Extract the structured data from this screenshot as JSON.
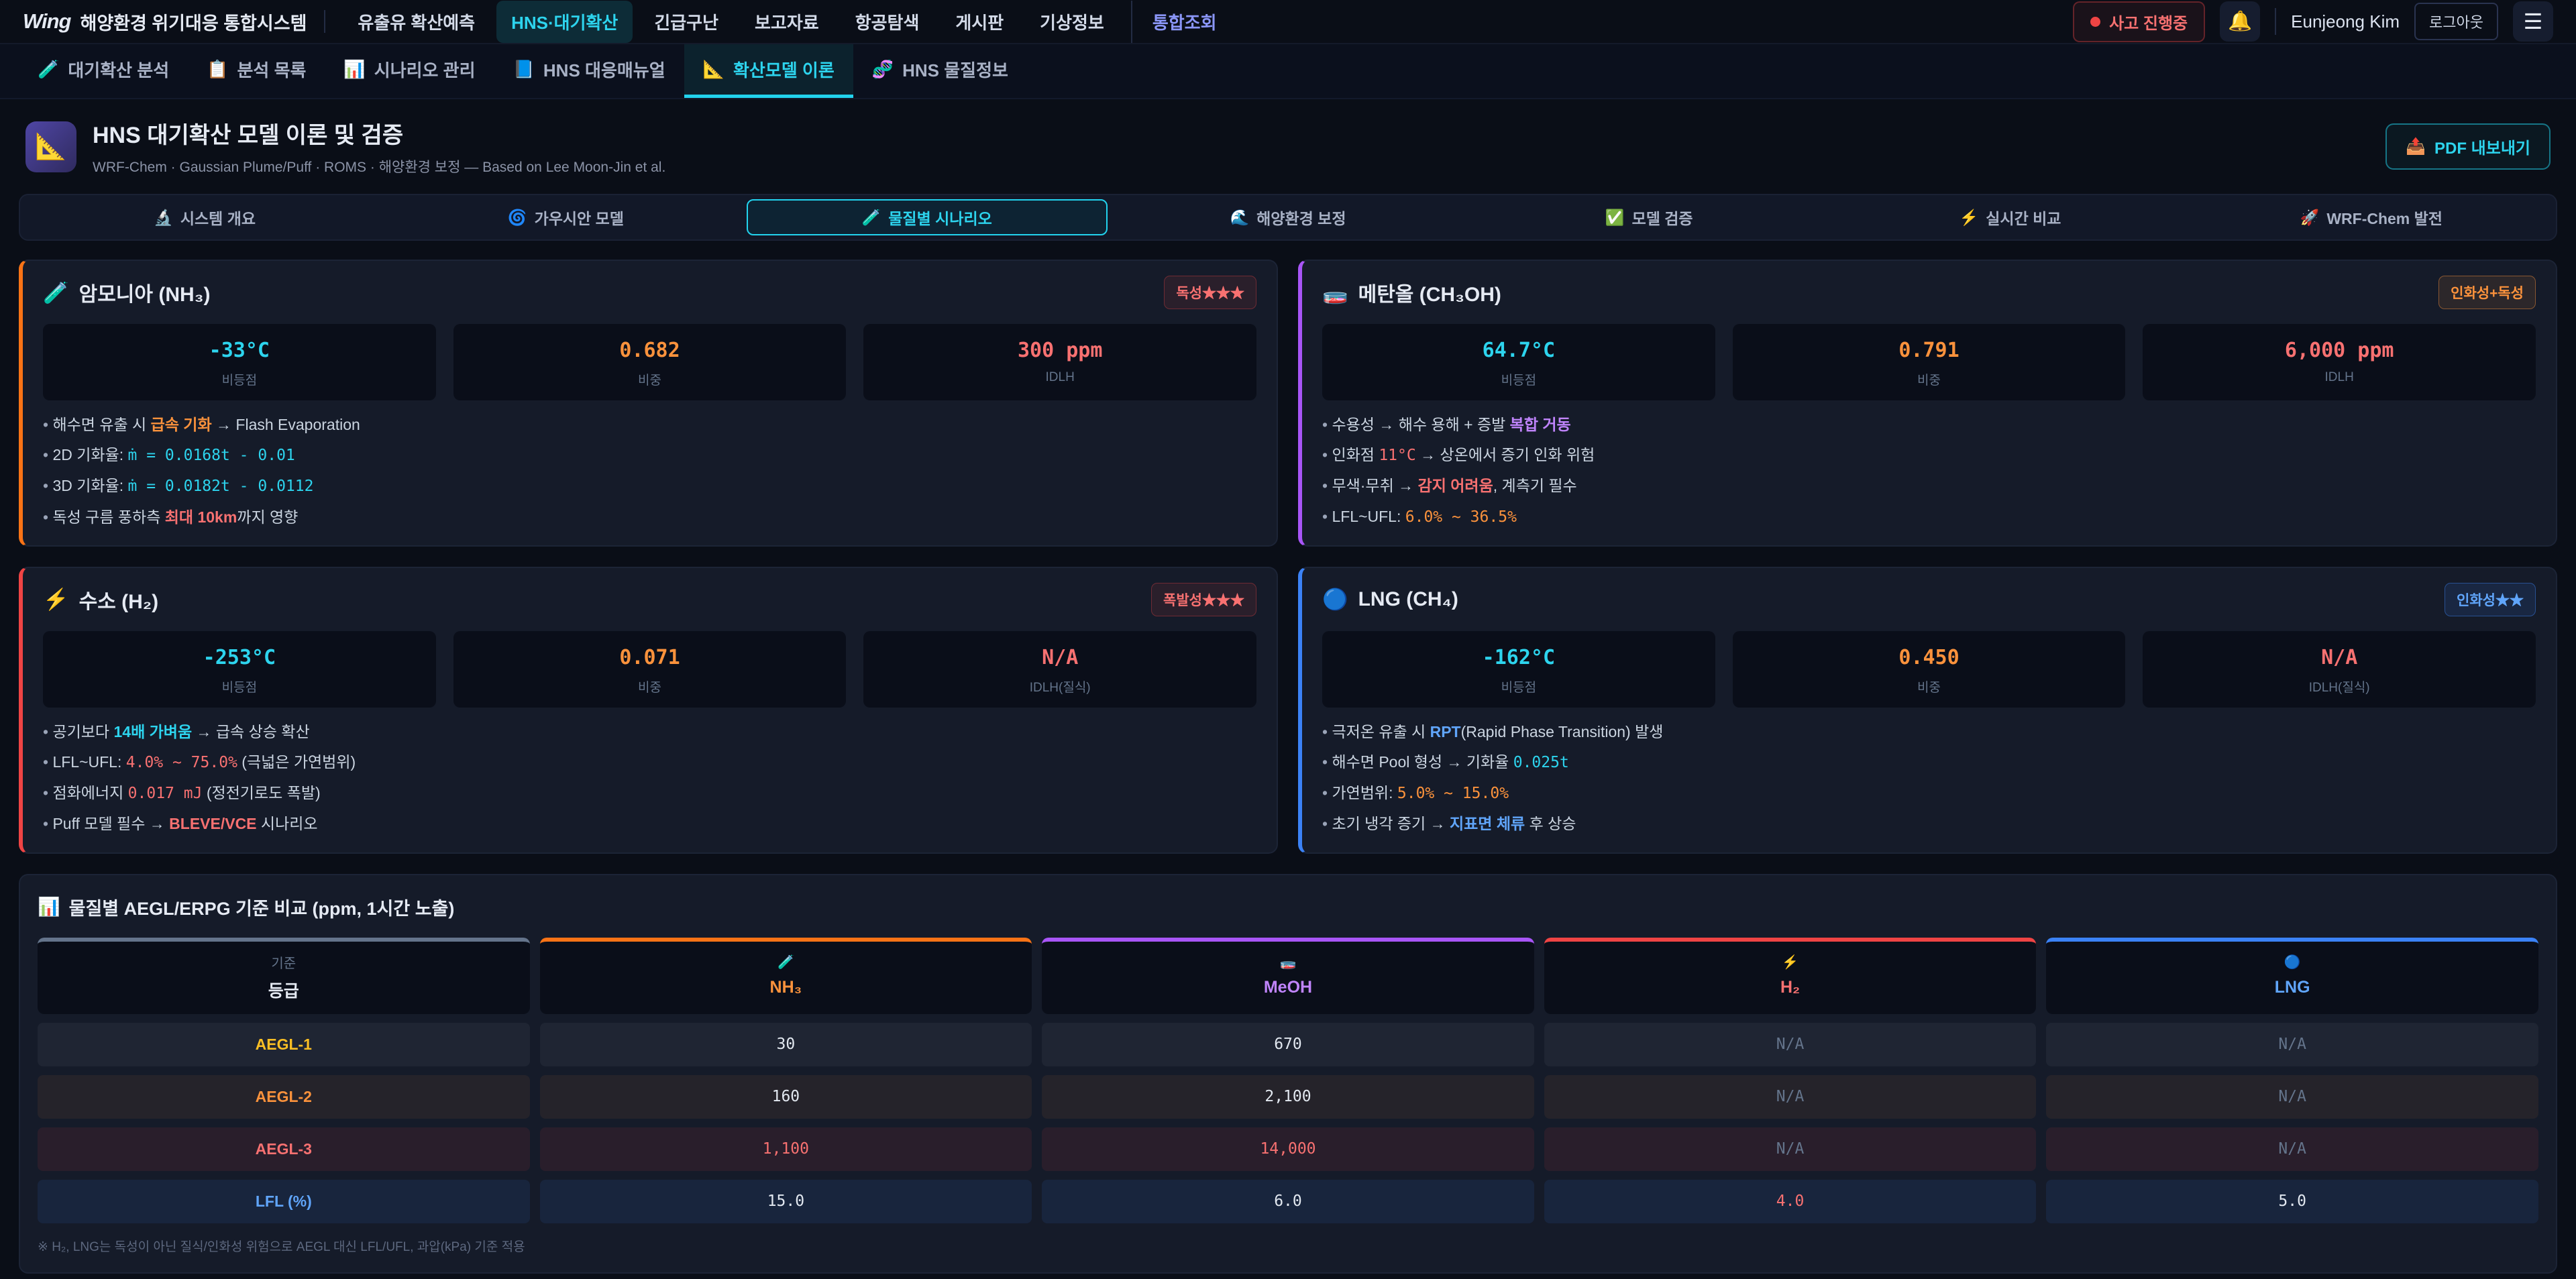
{
  "topbar": {
    "logo_mark": "Wing",
    "logo_text": "해양환경 위기대응 통합시스템",
    "nav": [
      {
        "label": "유출유 확산예측"
      },
      {
        "label": "HNS·대기확산",
        "state": "active"
      },
      {
        "label": "긴급구난"
      },
      {
        "label": "보고자료"
      },
      {
        "label": "항공탐색"
      },
      {
        "label": "게시판"
      },
      {
        "label": "기상정보"
      },
      {
        "label": "통합조회",
        "state": "accent"
      }
    ],
    "incident_label": "사고 진행중",
    "bell_icon": "🔔",
    "user_name": "Eunjeong Kim",
    "logout_label": "로그아웃",
    "menu_icon": "☰"
  },
  "subnav": [
    {
      "icon": "🧪",
      "label": "대기확산 분석"
    },
    {
      "icon": "📋",
      "label": "분석 목록"
    },
    {
      "icon": "📊",
      "label": "시나리오 관리"
    },
    {
      "icon": "📘",
      "label": "HNS 대응매뉴얼"
    },
    {
      "icon": "📐",
      "label": "확산모델 이론",
      "active": true
    },
    {
      "icon": "🧬",
      "label": "HNS 물질정보"
    }
  ],
  "header": {
    "icon": "📐",
    "title": "HNS 대기확산 모델 이론 및 검증",
    "subtitle": "WRF-Chem · Gaussian Plume/Puff · ROMS · 해양환경 보정 — Based on Lee Moon-Jin et al.",
    "export_icon": "📤",
    "export_label": "PDF 내보내기"
  },
  "section_tabs": [
    {
      "icon": "🔬",
      "label": "시스템 개요"
    },
    {
      "icon": "🌀",
      "label": "가우시안 모델"
    },
    {
      "icon": "🧪",
      "label": "물질별 시나리오",
      "active": true
    },
    {
      "icon": "🌊",
      "label": "해양환경 보정"
    },
    {
      "icon": "✅",
      "label": "모델 검증"
    },
    {
      "icon": "⚡",
      "label": "실시간 비교"
    },
    {
      "icon": "🚀",
      "label": "WRF-Chem 발전"
    }
  ],
  "cards": [
    {
      "id": "nh3",
      "accent": "#f97316",
      "icon": "🧪",
      "title": "암모니아 (NH₃)",
      "badge": {
        "label": "독성★★★",
        "style": "red"
      },
      "stats": [
        {
          "value": "-33°C",
          "label": "비등점",
          "color": "cyan"
        },
        {
          "value": "0.682",
          "label": "비중",
          "color": "orange"
        },
        {
          "value": "300 ppm",
          "label": "IDLH",
          "color": "red"
        }
      ],
      "bullets": [
        {
          "pre": "해수면 유출 시 ",
          "hl": "급속 기화",
          "style": "orange-b",
          "post": " → Flash Evaporation"
        },
        {
          "pre": "2D 기화율: ",
          "hl": "ṁ = 0.0168t - 0.01",
          "style": "cyan-m",
          "post": ""
        },
        {
          "pre": "3D 기화율: ",
          "hl": "ṁ = 0.0182t - 0.0112",
          "style": "cyan-m",
          "post": ""
        },
        {
          "pre": "독성 구름 풍하측 ",
          "hl": "최대 10km",
          "style": "red-b",
          "post": "까지 영향"
        }
      ]
    },
    {
      "id": "meoh",
      "accent": "#a855f7",
      "icon": "🧫",
      "title": "메탄올 (CH₃OH)",
      "badge": {
        "label": "인화성+독성",
        "style": "orange"
      },
      "stats": [
        {
          "value": "64.7°C",
          "label": "비등점",
          "color": "cyan"
        },
        {
          "value": "0.791",
          "label": "비중",
          "color": "orange"
        },
        {
          "value": "6,000 ppm",
          "label": "IDLH",
          "color": "red"
        }
      ],
      "bullets": [
        {
          "pre": "수용성 → 해수 용해 + 증발 ",
          "hl": "복합 거동",
          "style": "purple-b",
          "post": ""
        },
        {
          "pre": "인화점 ",
          "hl": "11°C",
          "style": "red-m",
          "post": " → 상온에서 증기 인화 위험"
        },
        {
          "pre": "무색·무취 → ",
          "hl": "감지 어려움",
          "style": "red-b",
          "post": ", 계측기 필수"
        },
        {
          "pre": "LFL~UFL: ",
          "hl": "6.0% ~ 36.5%",
          "style": "orange-m",
          "post": ""
        }
      ]
    },
    {
      "id": "h2",
      "accent": "#ef4444",
      "icon": "⚡",
      "title": "수소 (H₂)",
      "badge": {
        "label": "폭발성★★★",
        "style": "red"
      },
      "stats": [
        {
          "value": "-253°C",
          "label": "비등점",
          "color": "cyan"
        },
        {
          "value": "0.071",
          "label": "비중",
          "color": "orange"
        },
        {
          "value": "N/A",
          "label": "IDLH(질식)",
          "color": "red"
        }
      ],
      "bullets": [
        {
          "pre": "공기보다 ",
          "hl": "14배 가벼움",
          "style": "cyan-b",
          "post": " → 급속 상승 확산"
        },
        {
          "pre": "LFL~UFL: ",
          "hl": "4.0% ~ 75.0%",
          "style": "red-m",
          "post": " (극넓은 가연범위)"
        },
        {
          "pre": "점화에너지 ",
          "hl": "0.017 mJ",
          "style": "red-m",
          "post": " (정전기로도 폭발)"
        },
        {
          "pre": "Puff 모델 필수 → ",
          "hl": "BLEVE/VCE",
          "style": "red-b",
          "post": " 시나리오"
        }
      ]
    },
    {
      "id": "lng",
      "accent": "#3b82f6",
      "icon": "🔵",
      "title": "LNG (CH₄)",
      "badge": {
        "label": "인화성★★",
        "style": "blue"
      },
      "stats": [
        {
          "value": "-162°C",
          "label": "비등점",
          "color": "cyan"
        },
        {
          "value": "0.450",
          "label": "비중",
          "color": "orange"
        },
        {
          "value": "N/A",
          "label": "IDLH(질식)",
          "color": "red"
        }
      ],
      "bullets": [
        {
          "pre": "극저온 유출 시 ",
          "hl": "RPT",
          "style": "blue-b",
          "post": "(Rapid Phase Transition) 발생"
        },
        {
          "pre": "해수면 Pool 형성 → 기화율 ",
          "hl": "0.025t",
          "style": "cyan-m",
          "post": ""
        },
        {
          "pre": "가연범위: ",
          "hl": "5.0% ~ 15.0%",
          "style": "orange-m",
          "post": ""
        },
        {
          "pre": "초기 냉각 증기 → ",
          "hl": "지표면 체류",
          "style": "blue-b",
          "post": " 후 상승"
        }
      ]
    }
  ],
  "table": {
    "icon": "📊",
    "title": "물질별 AEGL/ERPG 기준 비교 (ppm, 1시간 노출)",
    "columns": [
      {
        "top": "기준",
        "label": "등급",
        "accent": "#64748b",
        "label_color": "#e5eaf3"
      },
      {
        "top": "🧪",
        "label": "NH₃",
        "accent": "#f97316",
        "label_color": "#fb923c"
      },
      {
        "top": "🧫",
        "label": "MeOH",
        "accent": "#a855f7",
        "label_color": "#c084fc"
      },
      {
        "top": "⚡",
        "label": "H₂",
        "accent": "#ef4444",
        "label_color": "#f87171"
      },
      {
        "top": "🔵",
        "label": "LNG",
        "accent": "#3b82f6",
        "label_color": "#60a5fa"
      }
    ],
    "rows": [
      {
        "label": "AEGL-1",
        "label_color": "#fbbf24",
        "tint": "rgba(148,163,184,0.08)",
        "values": [
          {
            "t": "30"
          },
          {
            "t": "670"
          },
          {
            "t": "N/A",
            "c": "muted"
          },
          {
            "t": "N/A",
            "c": "muted"
          }
        ]
      },
      {
        "label": "AEGL-2",
        "label_color": "#fb923c",
        "tint": "rgba(251,146,60,0.07)",
        "values": [
          {
            "t": "160"
          },
          {
            "t": "2,100"
          },
          {
            "t": "N/A",
            "c": "muted"
          },
          {
            "t": "N/A",
            "c": "muted"
          }
        ]
      },
      {
        "label": "AEGL-3",
        "label_color": "#f87171",
        "tint": "rgba(239,68,68,0.09)",
        "values": [
          {
            "t": "1,100",
            "c": "red"
          },
          {
            "t": "14,000",
            "c": "red"
          },
          {
            "t": "N/A",
            "c": "muted"
          },
          {
            "t": "N/A",
            "c": "muted"
          }
        ]
      },
      {
        "label": "LFL (%)",
        "label_color": "#60a5fa",
        "tint": "rgba(59,130,246,0.10)",
        "values": [
          {
            "t": "15.0"
          },
          {
            "t": "6.0"
          },
          {
            "t": "4.0",
            "c": "red"
          },
          {
            "t": "5.0"
          }
        ]
      }
    ],
    "footnote": "※ H₂, LNG는 독성이 아닌 질식/인화성 위험으로 AEGL 대신 LFL/UFL, 과압(kPa) 기준 적용"
  }
}
